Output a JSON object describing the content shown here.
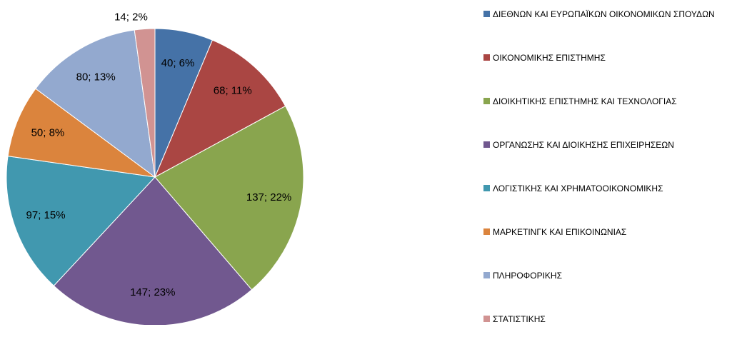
{
  "chart_data": {
    "type": "pie",
    "categories": [
      "ΔΙΕΘΝΩΝ ΚΑΙ ΕΥΡΩΠΑΪΚΩΝ ΟΙΚΟΝΟΜΙΚΩΝ ΣΠΟΥΔΩΝ",
      "ΟΙΚΟΝΟΜΙΚΗΣ ΕΠΙΣΤΗΜΗΣ",
      "ΔΙΟΙΚΗΤΙΚΗΣ ΕΠΙΣΤΗΜΗΣ ΚΑΙ ΤΕΧΝΟΛΟΓΙΑΣ",
      "ΟΡΓΑΝΩΣΗΣ ΚΑΙ ΔΙΟΙΚΗΣΗΣ ΕΠΙΧΕΙΡΗΣΕΩΝ",
      "ΛΟΓΙΣΤΙΚΗΣ ΚΑΙ ΧΡΗΜΑΤΟΟΙΚΟΝΟΜΙΚΗΣ",
      "ΜΑΡΚΕΤΙΝΓΚ ΚΑΙ ΕΠΙΚΟΙΝΩΝΙΑΣ",
      "ΠΛΗΡΟΦΟΡΙΚΗΣ",
      "ΣΤΑΤΙΣΤΙΚΗΣ"
    ],
    "values": [
      40,
      68,
      137,
      147,
      97,
      50,
      80,
      14
    ],
    "value_labels": [
      "40; 6%",
      "68; 11%",
      "137; 22%",
      "147; 23%",
      "97; 15%",
      "50; 8%",
      "80; 13%",
      "14; 2%"
    ],
    "colors": [
      "#4572a7",
      "#aa4643",
      "#89a54e",
      "#71588f",
      "#4198af",
      "#db843d",
      "#93a9cf",
      "#d19392"
    ],
    "legend": "right"
  }
}
